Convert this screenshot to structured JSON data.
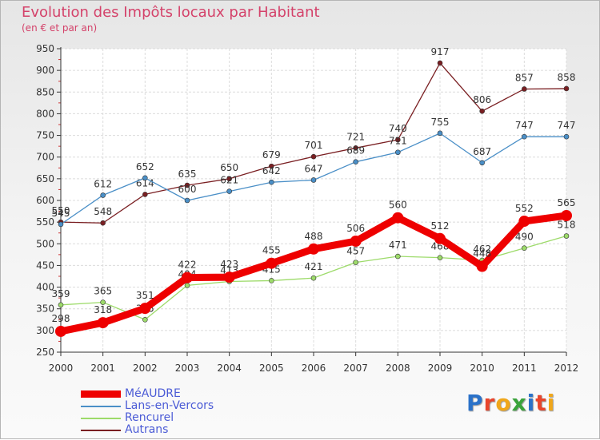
{
  "title": "Evolution des Impôts locaux par Habitant",
  "subtitle": "(en € et par an)",
  "logo": {
    "text": "Proxiti",
    "letter_colors": [
      "#2b72c9",
      "#e8452c",
      "#f0a71b",
      "#3aa33b",
      "#2b72c9",
      "#e8452c",
      "#f0a71b"
    ]
  },
  "chart_data": {
    "type": "line",
    "categories": [
      "2000",
      "2001",
      "2002",
      "2003",
      "2004",
      "2005",
      "2006",
      "2007",
      "2008",
      "2009",
      "2010",
      "2011",
      "2012"
    ],
    "ylim": [
      250,
      950
    ],
    "yticks": [
      250,
      300,
      350,
      400,
      450,
      500,
      550,
      600,
      650,
      700,
      750,
      800,
      850,
      900,
      950
    ],
    "grid": true,
    "legend_position": "bottom-left",
    "series": [
      {
        "name": "Autrans",
        "color": "#7a1f22",
        "values": [
          550,
          548,
          614,
          635,
          650,
          679,
          701,
          721,
          740,
          917,
          806,
          857,
          858
        ]
      },
      {
        "name": "Lans-en-Vercors",
        "color": "#4a8fc7",
        "values": [
          545,
          612,
          652,
          600,
          621,
          642,
          647,
          689,
          711,
          755,
          687,
          747,
          747
        ]
      },
      {
        "name": "Rencurel",
        "color": "#9ddb6a",
        "values": [
          359,
          365,
          325,
          404,
          413,
          415,
          421,
          457,
          471,
          468,
          462,
          490,
          518
        ]
      },
      {
        "name": "MéAUDRE",
        "color": "#ee0000",
        "values": [
          298,
          318,
          351,
          422,
          423,
          455,
          488,
          506,
          560,
          512,
          448,
          552,
          565
        ]
      }
    ],
    "legend_order": [
      "MéAUDRE",
      "Lans-en-Vercors",
      "Rencurel",
      "Autrans"
    ]
  }
}
